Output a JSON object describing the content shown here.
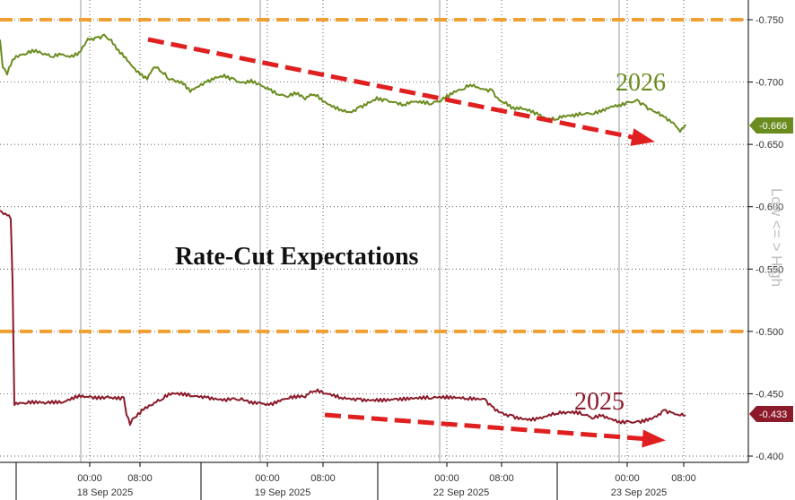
{
  "chart_data": {
    "type": "line",
    "title": "Rate-Cut Expectations",
    "ylabel": "Low <= > High",
    "ylim": [
      -0.4,
      -0.75
    ],
    "y_ticks": [
      "-0.750",
      "-0.700",
      "-0.650",
      "-0.600",
      "-0.550",
      "-0.500",
      "-0.450",
      "-0.400"
    ],
    "x_tick_labels": [
      "00:00",
      "08:00",
      "00:00",
      "08:00",
      "00:00",
      "08:00",
      "00:00",
      "08:00"
    ],
    "date_labels": [
      "18 Sep 2025",
      "19 Sep 2025",
      "22 Sep 2025",
      "23 Sep 2025"
    ],
    "reference_lines": [
      -0.75,
      -0.5
    ],
    "series": [
      {
        "name": "2026",
        "color": "#6a8c1f",
        "last_value_label": "-0.666",
        "last_value": -0.666,
        "points": [
          [
            0,
            -0.734
          ],
          [
            3,
            -0.712
          ],
          [
            8,
            -0.706
          ],
          [
            14,
            -0.718
          ],
          [
            20,
            -0.72
          ],
          [
            28,
            -0.722
          ],
          [
            38,
            -0.724
          ],
          [
            48,
            -0.722
          ],
          [
            58,
            -0.72
          ],
          [
            68,
            -0.722
          ],
          [
            78,
            -0.72
          ],
          [
            88,
            -0.724
          ],
          [
            98,
            -0.735
          ],
          [
            108,
            -0.736
          ],
          [
            116,
            -0.738
          ],
          [
            124,
            -0.734
          ],
          [
            132,
            -0.726
          ],
          [
            140,
            -0.72
          ],
          [
            148,
            -0.712
          ],
          [
            156,
            -0.706
          ],
          [
            164,
            -0.702
          ],
          [
            172,
            -0.712
          ],
          [
            180,
            -0.708
          ],
          [
            188,
            -0.702
          ],
          [
            196,
            -0.7
          ],
          [
            204,
            -0.698
          ],
          [
            212,
            -0.692
          ],
          [
            220,
            -0.696
          ],
          [
            230,
            -0.7
          ],
          [
            240,
            -0.704
          ],
          [
            250,
            -0.706
          ],
          [
            260,
            -0.703
          ],
          [
            270,
            -0.7
          ],
          [
            280,
            -0.702
          ],
          [
            290,
            -0.698
          ],
          [
            300,
            -0.694
          ],
          [
            310,
            -0.69
          ],
          [
            320,
            -0.688
          ],
          [
            330,
            -0.69
          ],
          [
            340,
            -0.686
          ],
          [
            350,
            -0.69
          ],
          [
            360,
            -0.684
          ],
          [
            370,
            -0.68
          ],
          [
            380,
            -0.678
          ],
          [
            390,
            -0.676
          ],
          [
            400,
            -0.68
          ],
          [
            410,
            -0.684
          ],
          [
            420,
            -0.688
          ],
          [
            430,
            -0.686
          ],
          [
            440,
            -0.684
          ],
          [
            450,
            -0.682
          ],
          [
            460,
            -0.684
          ],
          [
            470,
            -0.683
          ],
          [
            480,
            -0.682
          ],
          [
            490,
            -0.684
          ],
          [
            500,
            -0.688
          ],
          [
            508,
            -0.692
          ],
          [
            516,
            -0.694
          ],
          [
            524,
            -0.698
          ],
          [
            532,
            -0.696
          ],
          [
            540,
            -0.694
          ],
          [
            548,
            -0.694
          ],
          [
            556,
            -0.686
          ],
          [
            564,
            -0.684
          ],
          [
            572,
            -0.68
          ],
          [
            580,
            -0.68
          ],
          [
            590,
            -0.678
          ],
          [
            600,
            -0.674
          ],
          [
            610,
            -0.67
          ],
          [
            620,
            -0.67
          ],
          [
            630,
            -0.672
          ],
          [
            640,
            -0.672
          ],
          [
            650,
            -0.674
          ],
          [
            660,
            -0.674
          ],
          [
            670,
            -0.676
          ],
          [
            680,
            -0.68
          ],
          [
            690,
            -0.682
          ],
          [
            700,
            -0.684
          ],
          [
            710,
            -0.686
          ],
          [
            718,
            -0.682
          ],
          [
            726,
            -0.678
          ],
          [
            734,
            -0.676
          ],
          [
            740,
            -0.672
          ],
          [
            746,
            -0.67
          ],
          [
            752,
            -0.666
          ],
          [
            758,
            -0.66
          ],
          [
            764,
            -0.666
          ]
        ]
      },
      {
        "name": "2025",
        "color": "#8b1a2a",
        "last_value_label": "-0.433",
        "last_value": -0.433,
        "points": [
          [
            0,
            -0.597
          ],
          [
            4,
            -0.594
          ],
          [
            8,
            -0.593
          ],
          [
            12,
            -0.59
          ],
          [
            14,
            -0.54
          ],
          [
            16,
            -0.441
          ],
          [
            28,
            -0.442
          ],
          [
            50,
            -0.442
          ],
          [
            70,
            -0.443
          ],
          [
            88,
            -0.449
          ],
          [
            100,
            -0.448
          ],
          [
            120,
            -0.448
          ],
          [
            138,
            -0.447
          ],
          [
            141,
            -0.433
          ],
          [
            145,
            -0.425
          ],
          [
            150,
            -0.431
          ],
          [
            160,
            -0.437
          ],
          [
            170,
            -0.441
          ],
          [
            180,
            -0.445
          ],
          [
            190,
            -0.449
          ],
          [
            200,
            -0.449
          ],
          [
            214,
            -0.448
          ],
          [
            230,
            -0.447
          ],
          [
            250,
            -0.446
          ],
          [
            265,
            -0.445
          ],
          [
            280,
            -0.444
          ],
          [
            290,
            -0.443
          ],
          [
            300,
            -0.441
          ],
          [
            320,
            -0.446
          ],
          [
            340,
            -0.447
          ],
          [
            350,
            -0.452
          ],
          [
            362,
            -0.45
          ],
          [
            380,
            -0.447
          ],
          [
            400,
            -0.446
          ],
          [
            420,
            -0.446
          ],
          [
            440,
            -0.446
          ],
          [
            460,
            -0.446
          ],
          [
            480,
            -0.446
          ],
          [
            500,
            -0.446
          ],
          [
            520,
            -0.446
          ],
          [
            540,
            -0.446
          ],
          [
            548,
            -0.44
          ],
          [
            560,
            -0.435
          ],
          [
            570,
            -0.433
          ],
          [
            580,
            -0.431
          ],
          [
            590,
            -0.43
          ],
          [
            600,
            -0.43
          ],
          [
            610,
            -0.432
          ],
          [
            620,
            -0.434
          ],
          [
            630,
            -0.434
          ],
          [
            640,
            -0.434
          ],
          [
            650,
            -0.433
          ],
          [
            660,
            -0.43
          ],
          [
            670,
            -0.432
          ],
          [
            680,
            -0.43
          ],
          [
            690,
            -0.428
          ],
          [
            700,
            -0.428
          ],
          [
            710,
            -0.428
          ],
          [
            720,
            -0.43
          ],
          [
            730,
            -0.432
          ],
          [
            740,
            -0.437
          ],
          [
            748,
            -0.435
          ],
          [
            756,
            -0.433
          ],
          [
            764,
            -0.433
          ]
        ]
      }
    ]
  }
}
